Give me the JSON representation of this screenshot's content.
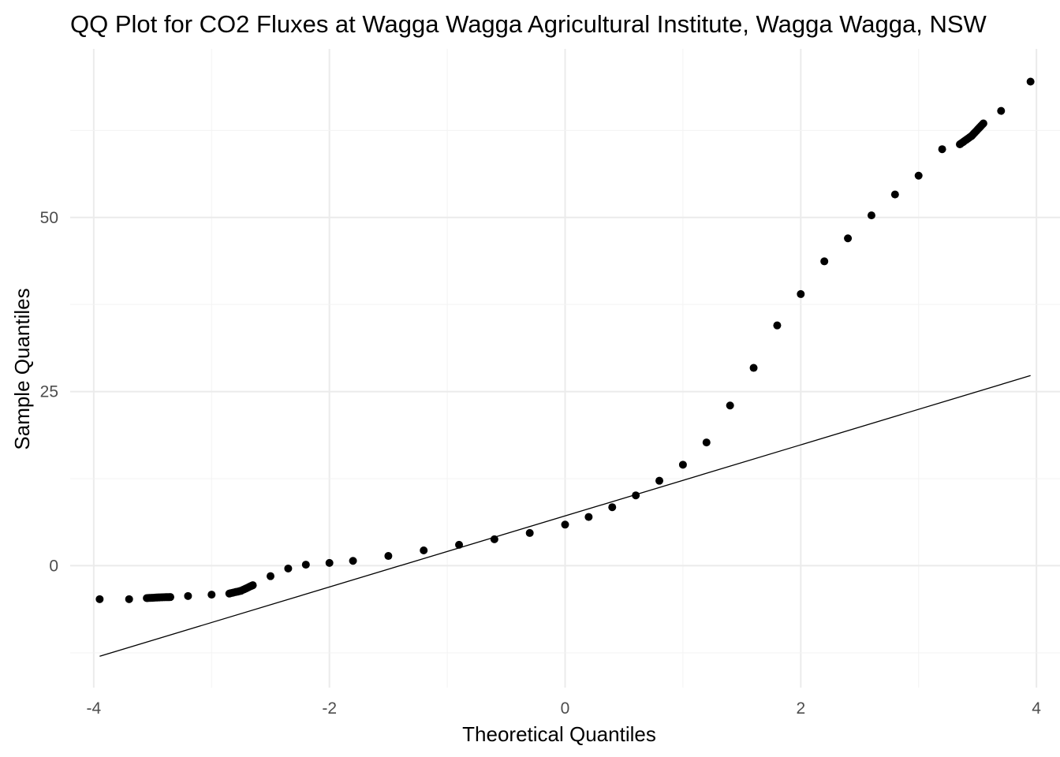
{
  "chart_data": {
    "type": "scatter",
    "title": "QQ Plot for CO2 Fluxes at Wagga Wagga Agricultural Institute, Wagga Wagga, NSW",
    "xlabel": "Theoretical Quantiles",
    "ylabel": "Sample Quantiles",
    "xlim": [
      -4.2,
      4.2
    ],
    "ylim": [
      -17.5,
      74.2
    ],
    "x_ticks": [
      -4,
      -2,
      0,
      2,
      4
    ],
    "x_tick_labels": [
      "-4",
      "-2",
      "0",
      "2",
      "4"
    ],
    "y_ticks": [
      0,
      25,
      50
    ],
    "y_tick_labels": [
      "0",
      "25",
      "50"
    ],
    "grid": true,
    "legend": "none",
    "point_color": "#000000",
    "reference_line": {
      "x": [
        -3.95,
        3.95
      ],
      "y": [
        -13.0,
        27.3
      ]
    },
    "quantiles": [
      [
        -3.95,
        -4.8
      ],
      [
        -3.7,
        -4.8
      ],
      [
        -3.55,
        -4.65
      ],
      [
        -3.45,
        -4.55
      ],
      [
        -3.35,
        -4.5
      ],
      [
        -3.2,
        -4.35
      ],
      [
        -3.0,
        -4.15
      ],
      [
        -2.85,
        -4.0
      ],
      [
        -2.75,
        -3.6
      ],
      [
        -2.65,
        -2.8
      ],
      [
        -2.5,
        -1.5
      ],
      [
        -2.35,
        -0.4
      ],
      [
        -2.2,
        0.15
      ],
      [
        -2.0,
        0.4
      ],
      [
        -1.8,
        0.7
      ],
      [
        -1.5,
        1.4
      ],
      [
        -1.2,
        2.2
      ],
      [
        -0.9,
        3.0
      ],
      [
        -0.6,
        3.8
      ],
      [
        -0.3,
        4.7
      ],
      [
        0.0,
        5.9
      ],
      [
        0.2,
        7.0
      ],
      [
        0.4,
        8.4
      ],
      [
        0.6,
        10.1
      ],
      [
        0.8,
        12.2
      ],
      [
        1.0,
        14.5
      ],
      [
        1.2,
        17.7
      ],
      [
        1.4,
        23.0
      ],
      [
        1.6,
        28.4
      ],
      [
        1.8,
        34.5
      ],
      [
        2.0,
        39.0
      ],
      [
        2.2,
        43.7
      ],
      [
        2.4,
        47.0
      ],
      [
        2.6,
        50.3
      ],
      [
        2.8,
        53.3
      ],
      [
        3.0,
        56.0
      ],
      [
        3.2,
        59.8
      ],
      [
        3.35,
        60.5
      ],
      [
        3.45,
        61.7
      ],
      [
        3.55,
        63.5
      ],
      [
        3.7,
        65.3
      ],
      [
        3.95,
        69.5
      ]
    ]
  }
}
